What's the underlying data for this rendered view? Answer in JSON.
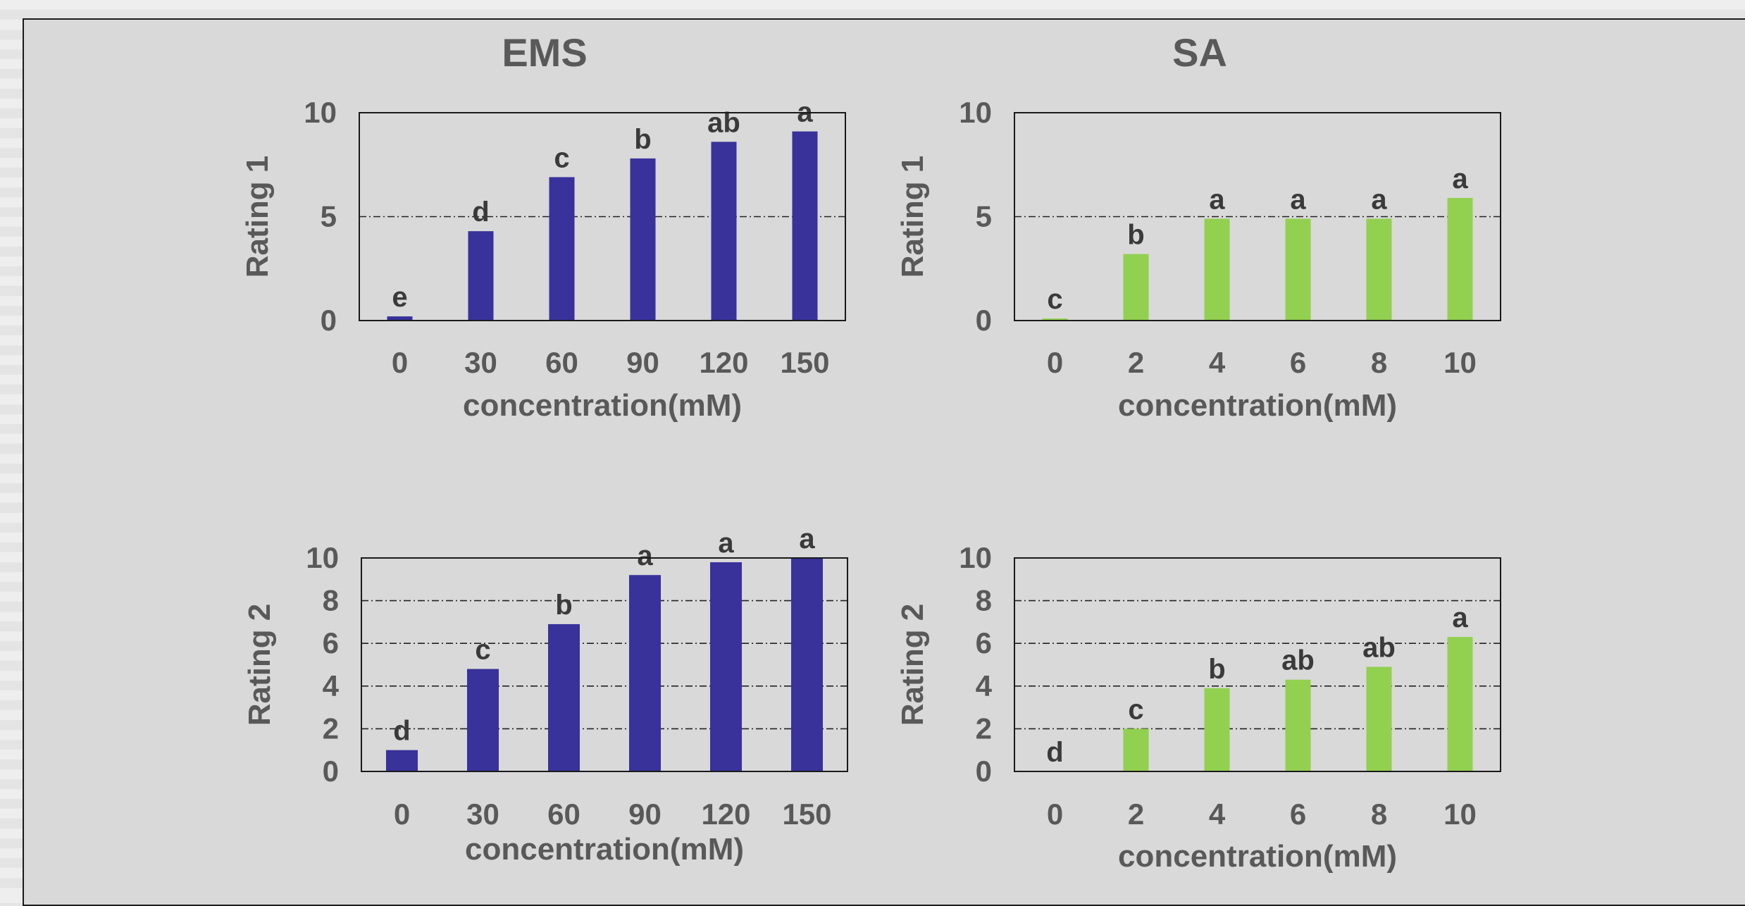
{
  "chart_data": [
    {
      "type": "bar",
      "title": "EMS",
      "xlabel": "concentration(mM)",
      "ylabel": "Rating 1",
      "categories": [
        "0",
        "30",
        "60",
        "90",
        "120",
        "150"
      ],
      "values": [
        0.2,
        4.3,
        6.9,
        7.8,
        8.6,
        9.1
      ],
      "letters": [
        "e",
        "d",
        "c",
        "b",
        "ab",
        "a"
      ],
      "ylim": [
        0,
        10
      ],
      "yticks": [
        0,
        5,
        10
      ],
      "gridlines": [
        5
      ],
      "color": "#38329a"
    },
    {
      "type": "bar",
      "title": "SA",
      "xlabel": "concentration(mM)",
      "ylabel": "Rating 1",
      "categories": [
        "0",
        "2",
        "4",
        "6",
        "8",
        "10"
      ],
      "values": [
        0.1,
        3.2,
        4.9,
        4.9,
        4.9,
        5.9
      ],
      "letters": [
        "c",
        "b",
        "a",
        "a",
        "a",
        "a"
      ],
      "ylim": [
        0,
        10
      ],
      "yticks": [
        0,
        5,
        10
      ],
      "gridlines": [
        5
      ],
      "color": "#92d050"
    },
    {
      "type": "bar",
      "title": "",
      "xlabel": "concentration(mM)",
      "ylabel": "Rating 2",
      "categories": [
        "0",
        "30",
        "60",
        "90",
        "120",
        "150"
      ],
      "values": [
        1.0,
        4.8,
        6.9,
        9.2,
        9.8,
        10.0
      ],
      "letters": [
        "d",
        "c",
        "b",
        "a",
        "a",
        "a"
      ],
      "ylim": [
        0,
        10
      ],
      "yticks": [
        0,
        2,
        4,
        6,
        8,
        10
      ],
      "gridlines": [
        2,
        4,
        6,
        8
      ],
      "color": "#38329a"
    },
    {
      "type": "bar",
      "title": "",
      "xlabel": "concentration(mM)",
      "ylabel": "Rating 2",
      "categories": [
        "0",
        "2",
        "4",
        "6",
        "8",
        "10"
      ],
      "values": [
        0,
        2.0,
        3.9,
        4.3,
        4.9,
        6.3
      ],
      "letters": [
        "d",
        "c",
        "b",
        "ab",
        "ab",
        "a"
      ],
      "ylim": [
        0,
        10
      ],
      "yticks": [
        0,
        2,
        4,
        6,
        8,
        10
      ],
      "gridlines": [
        2,
        4,
        6,
        8
      ],
      "color": "#92d050"
    }
  ]
}
